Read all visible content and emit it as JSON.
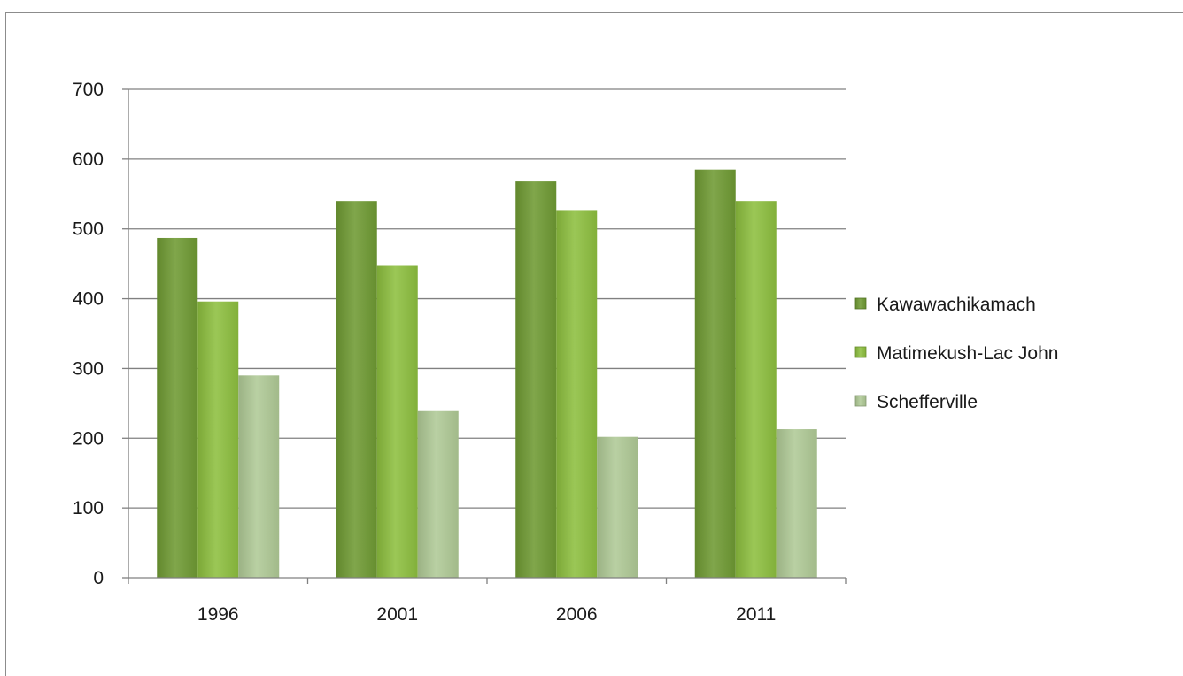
{
  "chart_data": {
    "type": "bar",
    "categories": [
      "1996",
      "2001",
      "2006",
      "2011"
    ],
    "series": [
      {
        "name": "Kawawachikamach",
        "values": [
          487,
          540,
          568,
          585
        ],
        "color": "#6f9a33"
      },
      {
        "name": "Matimekush-Lac John",
        "values": [
          396,
          447,
          527,
          540
        ],
        "color": "#8dbf3f"
      },
      {
        "name": "Schefferville",
        "values": [
          290,
          240,
          202,
          213
        ],
        "color": "#b0ca96"
      }
    ],
    "yticks": [
      "0",
      "100",
      "200",
      "300",
      "400",
      "500",
      "600",
      "700"
    ],
    "ylim": [
      0,
      700
    ],
    "grid": true,
    "legend_position": "right"
  }
}
